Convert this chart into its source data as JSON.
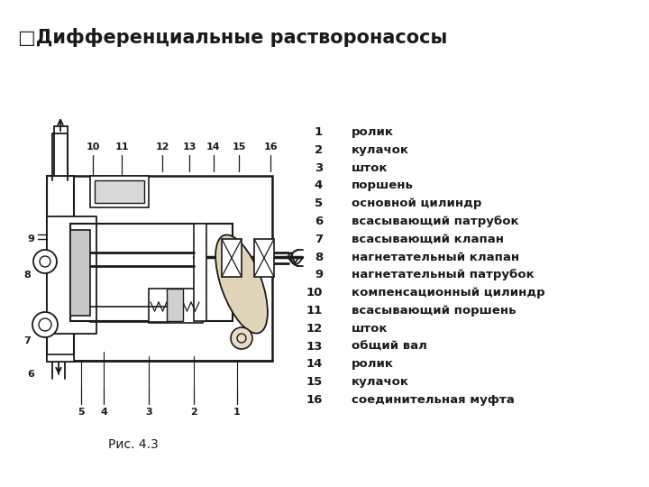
{
  "title": "□Дифференциальные растворонасосы",
  "caption": "Рис. 4.3",
  "legend": [
    [
      1,
      "ролик"
    ],
    [
      2,
      "кулачок"
    ],
    [
      3,
      "шток"
    ],
    [
      4,
      "поршень"
    ],
    [
      5,
      "основной цилиндр"
    ],
    [
      6,
      "всасывающий патрубок"
    ],
    [
      7,
      "всасывающий клапан"
    ],
    [
      8,
      "нагнетательный клапан"
    ],
    [
      9,
      "нагнетательный патрубок"
    ],
    [
      10,
      "компенсационный цилиндр"
    ],
    [
      11,
      "всасывающий поршень"
    ],
    [
      12,
      "шток"
    ],
    [
      13,
      "общий вал"
    ],
    [
      14,
      "ролик"
    ],
    [
      15,
      "кулачок"
    ],
    [
      16,
      "соединительная муфта"
    ]
  ],
  "bg_color": "#ffffff",
  "text_color": "#1a1a1a",
  "title_fontsize": 15,
  "legend_fontsize": 9.5,
  "caption_fontsize": 10
}
